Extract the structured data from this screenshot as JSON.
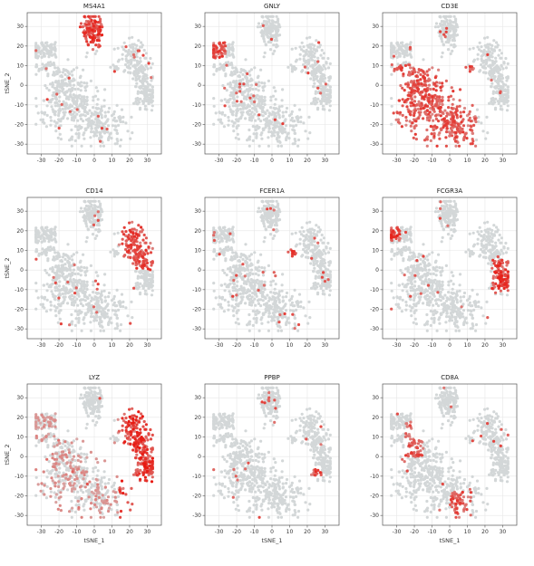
{
  "figure": {
    "xlabel": "tSNE_1",
    "ylabel": "tSNE_2",
    "low_color": "#d3d7d8",
    "high_color": "#e8170f",
    "grid_color": "#e6e6e6"
  },
  "chart_data": [
    {
      "type": "scatter",
      "title": "MS4A1",
      "xlim": [
        -38,
        38
      ],
      "ylim": [
        -35,
        37
      ],
      "xticks": [
        -30,
        -20,
        -10,
        0,
        10,
        20,
        30
      ],
      "yticks": [
        -30,
        -20,
        -10,
        0,
        10,
        20,
        30
      ],
      "grid": true,
      "ylabel": "tSNE_2",
      "xlabel": "",
      "highlight": "b_cluster",
      "intensity": 0.95
    },
    {
      "type": "scatter",
      "title": "GNLY",
      "xlim": [
        -38,
        38
      ],
      "ylim": [
        -35,
        37
      ],
      "xticks": [
        -30,
        -20,
        -10,
        0,
        10,
        20,
        30
      ],
      "yticks": [
        -30,
        -20,
        -10,
        0,
        10,
        20,
        30
      ],
      "grid": true,
      "ylabel": "",
      "xlabel": "",
      "highlight": "nk_cluster",
      "intensity": 0.9
    },
    {
      "type": "scatter",
      "title": "CD3E",
      "xlim": [
        -38,
        38
      ],
      "ylim": [
        -35,
        37
      ],
      "xticks": [
        -30,
        -20,
        -10,
        0,
        10,
        20,
        30
      ],
      "yticks": [
        -30,
        -20,
        -10,
        0,
        10,
        20,
        30
      ],
      "grid": true,
      "ylabel": "",
      "xlabel": "",
      "highlight": "t_cluster",
      "intensity": 0.85
    },
    {
      "type": "scatter",
      "title": "CD14",
      "xlim": [
        -38,
        38
      ],
      "ylim": [
        -35,
        37
      ],
      "xticks": [
        -30,
        -20,
        -10,
        0,
        10,
        20,
        30
      ],
      "yticks": [
        -30,
        -20,
        -10,
        0,
        10,
        20,
        30
      ],
      "grid": true,
      "ylabel": "tSNE_2",
      "xlabel": "",
      "highlight": "cd14_cluster",
      "intensity": 0.9
    },
    {
      "type": "scatter",
      "title": "FCER1A",
      "xlim": [
        -38,
        38
      ],
      "ylim": [
        -35,
        37
      ],
      "xticks": [
        -30,
        -20,
        -10,
        0,
        10,
        20,
        30
      ],
      "yticks": [
        -30,
        -20,
        -10,
        0,
        10,
        20,
        30
      ],
      "grid": true,
      "ylabel": "",
      "xlabel": "",
      "highlight": "dc_cluster",
      "intensity": 0.9
    },
    {
      "type": "scatter",
      "title": "FCGR3A",
      "xlim": [
        -38,
        38
      ],
      "ylim": [
        -35,
        37
      ],
      "xticks": [
        -30,
        -20,
        -10,
        0,
        10,
        20,
        30
      ],
      "yticks": [
        -30,
        -20,
        -10,
        0,
        10,
        20,
        30
      ],
      "grid": true,
      "ylabel": "",
      "xlabel": "",
      "highlight": "fcgr3a_cluster",
      "intensity": 0.95
    },
    {
      "type": "scatter",
      "title": "LYZ",
      "xlim": [
        -38,
        38
      ],
      "ylim": [
        -35,
        37
      ],
      "xticks": [
        -30,
        -20,
        -10,
        0,
        10,
        20,
        30
      ],
      "yticks": [
        -30,
        -20,
        -10,
        0,
        10,
        20,
        30
      ],
      "grid": true,
      "ylabel": "tSNE_2",
      "xlabel": "tSNE_1",
      "highlight": "myeloid_cluster",
      "intensity": 1.0
    },
    {
      "type": "scatter",
      "title": "PPBP",
      "xlim": [
        -38,
        38
      ],
      "ylim": [
        -35,
        37
      ],
      "xticks": [
        -30,
        -20,
        -10,
        0,
        10,
        20,
        30
      ],
      "yticks": [
        -30,
        -20,
        -10,
        0,
        10,
        20,
        30
      ],
      "grid": true,
      "ylabel": "",
      "xlabel": "tSNE_1",
      "highlight": "platelet_cluster",
      "intensity": 0.9
    },
    {
      "type": "scatter",
      "title": "CD8A",
      "xlim": [
        -38,
        38
      ],
      "ylim": [
        -35,
        37
      ],
      "xticks": [
        -30,
        -20,
        -10,
        0,
        10,
        20,
        30
      ],
      "yticks": [
        -30,
        -20,
        -10,
        0,
        10,
        20,
        30
      ],
      "grid": true,
      "ylabel": "",
      "xlabel": "tSNE_1",
      "highlight": "cd8_cluster",
      "intensity": 0.85
    }
  ]
}
